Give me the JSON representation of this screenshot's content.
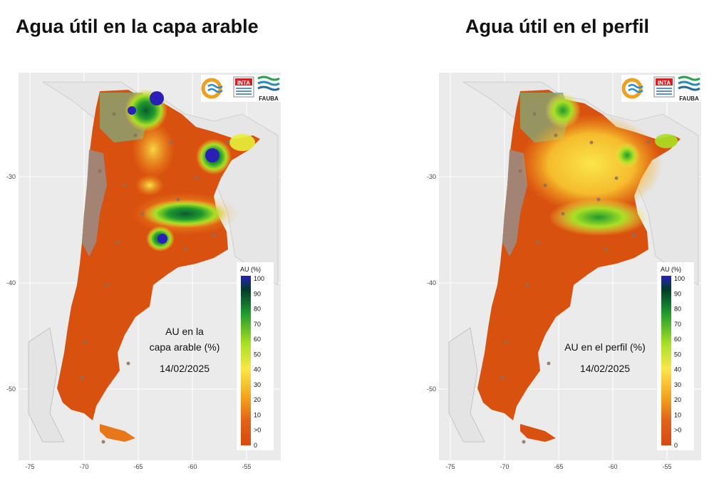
{
  "titles": {
    "left": "Agua útil en la capa arable",
    "right": "Agua útil en el perfil"
  },
  "maps": [
    {
      "id": "left",
      "annotation_lines": [
        "AU en la",
        "capa arable (%)",
        "14/02/2025"
      ],
      "logo_text": {
        "inta": "INTA",
        "fauba": "FAUBA"
      }
    },
    {
      "id": "right",
      "annotation_lines": [
        "AU en el perfil (%)",
        "14/02/2025"
      ],
      "logo_text": {
        "inta": "INTA",
        "fauba": "FAUBA"
      }
    }
  ],
  "axes": {
    "x_ticks": [
      "-75",
      "-70",
      "-65",
      "-60",
      "-55"
    ],
    "y_ticks": [
      "-30",
      "-40",
      "-50"
    ]
  },
  "legend": {
    "title": "AU (%)",
    "labels": [
      "100",
      "90",
      "80",
      "70",
      "60",
      "50",
      "40",
      "30",
      "20",
      "10",
      ">0",
      "0"
    ],
    "colors": [
      "#2a1fb8",
      "#003a2a",
      "#0a6a36",
      "#1f9a2e",
      "#5cc81e",
      "#a8e025",
      "#e6f03a",
      "#fbe64a",
      "#f8c830",
      "#f2a21e",
      "#e06418",
      "#d84a10"
    ]
  },
  "colors": {
    "panel_bg": "#ebebeb",
    "land_dry": "#d9510f",
    "mountain_gray": "#9c8a80",
    "neighbor_land": "#e8e8e8"
  }
}
